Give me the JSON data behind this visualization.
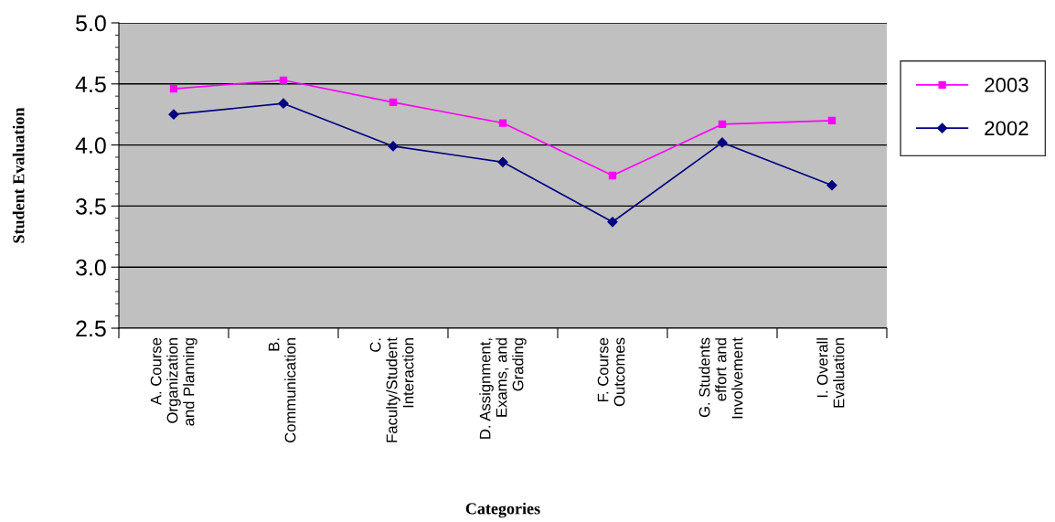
{
  "chart_data": {
    "type": "line",
    "xlabel": "Categories",
    "ylabel": "Student Evaluation",
    "categories": [
      "A. Course\nOrganization\nand Planning",
      "B.\nCommunication",
      "C.\nFaculty/Student\nInteraction",
      "D. Assignment,\nExams, and\nGrading",
      "F. Course\nOutcomes",
      "G. Students\neffort and\nInvolvement",
      "I. Overall\nEvaluation"
    ],
    "series": [
      {
        "name": "2003",
        "color": "#ff00ff",
        "marker": "square",
        "values": [
          4.46,
          4.53,
          4.35,
          4.18,
          3.75,
          4.17,
          4.2
        ]
      },
      {
        "name": "2002",
        "color": "#000080",
        "marker": "diamond",
        "values": [
          4.25,
          4.34,
          3.99,
          3.86,
          3.37,
          4.02,
          3.67
        ]
      }
    ],
    "ylim": [
      2.5,
      5.0
    ],
    "yticks": [
      {
        "value": 2.5,
        "label": "2.5"
      },
      {
        "value": 3.0,
        "label": "3.0"
      },
      {
        "value": 3.5,
        "label": "3.5"
      },
      {
        "value": 4.0,
        "label": "4.0"
      },
      {
        "value": 4.5,
        "label": "4.5"
      },
      {
        "value": 5.0,
        "label": "5.0"
      }
    ],
    "grid": "y",
    "legend": "right",
    "line_style": "solid"
  }
}
